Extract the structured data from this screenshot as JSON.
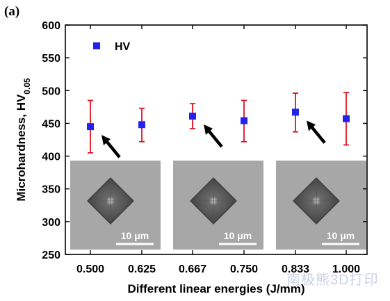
{
  "panel_label": "(a)",
  "watermark": "南极熊3D打印",
  "chart_data": {
    "type": "scatter",
    "categories": [
      "0.500",
      "0.625",
      "0.667",
      "0.750",
      "0.833",
      "1.000"
    ],
    "series": [
      {
        "name": "HV",
        "color": "#2222ee",
        "values": [
          445,
          448,
          461,
          454,
          467,
          457
        ],
        "error_low": [
          405,
          422,
          442,
          422,
          437,
          417
        ],
        "error_high": [
          485,
          473,
          480,
          485,
          496,
          497
        ]
      }
    ],
    "error_bar_color": "#e01020",
    "xlabel": "Different linear energies (J/mm)",
    "ylabel": "Microhardness, HV",
    "ylabel_subscript": "0.05",
    "ylim": [
      250,
      600
    ],
    "yticks": [
      250,
      300,
      350,
      400,
      450,
      500,
      550,
      600
    ],
    "legend_position": "top-left",
    "grid": false,
    "insets": [
      {
        "category": "0.500",
        "scale_label": "10 μm"
      },
      {
        "category": "0.667",
        "scale_label": "10 μm"
      },
      {
        "category": "0.833",
        "scale_label": "10 μm"
      }
    ]
  }
}
